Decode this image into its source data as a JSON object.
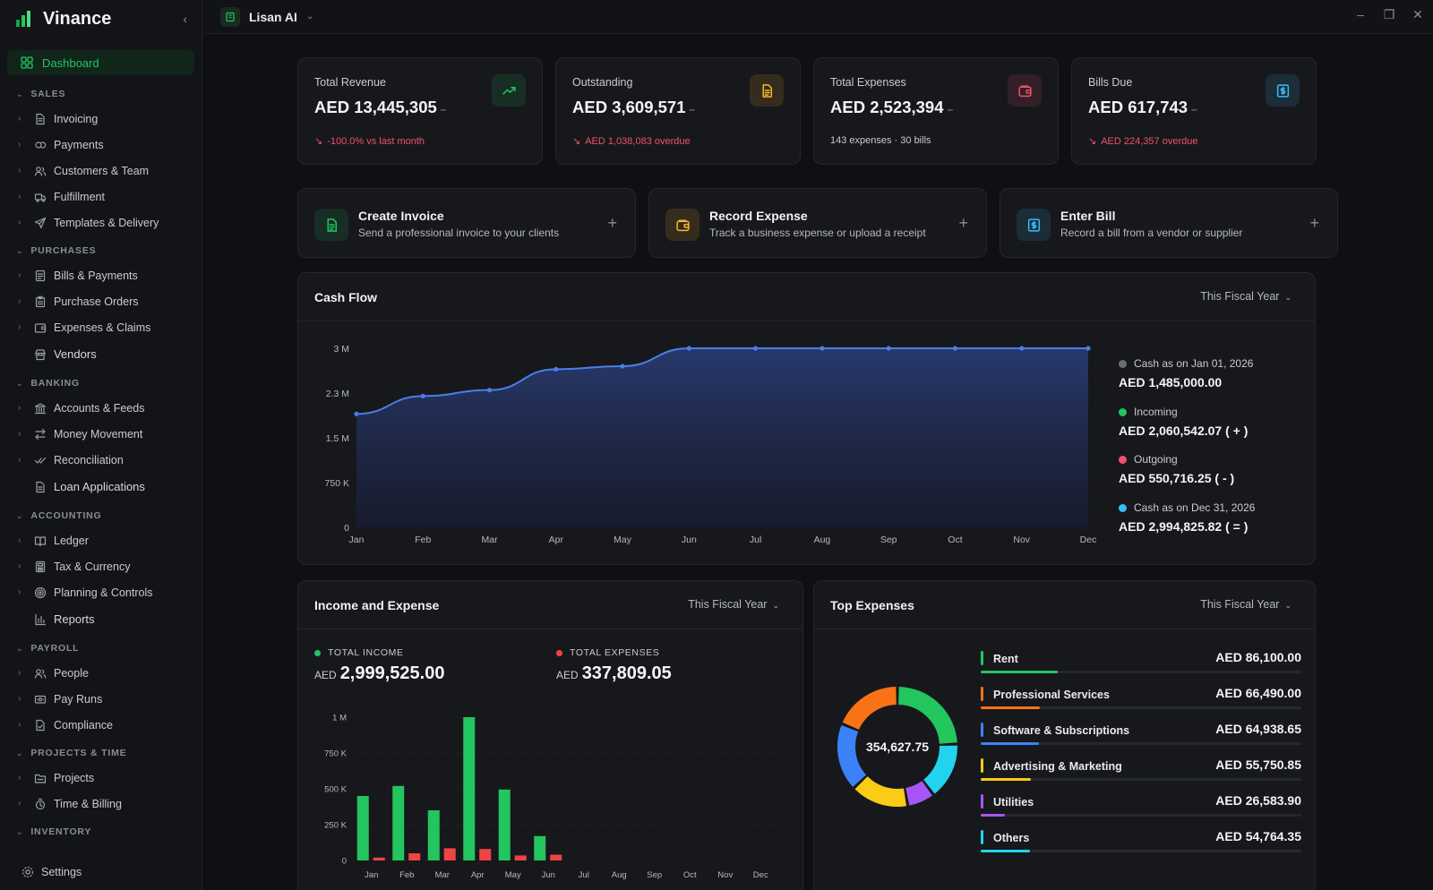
{
  "app": {
    "name": "Vinance",
    "org": "Lisan AI"
  },
  "sidebar": {
    "dashboard": "Dashboard",
    "sections": [
      {
        "title": "SALES",
        "items": [
          "Invoicing",
          "Payments",
          "Customers & Team",
          "Fulfillment",
          "Templates & Delivery"
        ]
      },
      {
        "title": "PURCHASES",
        "items": [
          "Bills & Payments",
          "Purchase Orders",
          "Expenses & Claims"
        ],
        "plain": "Vendors"
      },
      {
        "title": "BANKING",
        "items": [
          "Accounts & Feeds",
          "Money Movement",
          "Reconciliation"
        ],
        "plain": "Loan Applications"
      },
      {
        "title": "ACCOUNTING",
        "items": [
          "Ledger",
          "Tax & Currency",
          "Planning & Controls"
        ],
        "plain": "Reports"
      },
      {
        "title": "PAYROLL",
        "items": [
          "People",
          "Pay Runs",
          "Compliance"
        ]
      },
      {
        "title": "PROJECTS & TIME",
        "items": [
          "Projects",
          "Time & Billing"
        ]
      },
      {
        "title": "INVENTORY",
        "items": []
      }
    ],
    "settings": "Settings"
  },
  "stats": [
    {
      "label": "Total Revenue",
      "value": "AED 13,445,305",
      "sub": "-100.0% vs last month",
      "sub_negative": true,
      "icon": "trending-up-icon",
      "color": "#22c55e"
    },
    {
      "label": "Outstanding",
      "value": "AED 3,609,571",
      "sub": "AED 1,038,083 overdue",
      "sub_negative": true,
      "icon": "document-icon",
      "color": "#f5b82e"
    },
    {
      "label": "Total Expenses",
      "value": "AED 2,523,394",
      "sub": "143 expenses · 30 bills",
      "sub_negative": false,
      "icon": "wallet-icon",
      "color": "#f0506e"
    },
    {
      "label": "Bills Due",
      "value": "AED 617,743",
      "sub": "AED 224,357 overdue",
      "sub_negative": true,
      "icon": "bill-icon",
      "color": "#38bdf8"
    }
  ],
  "actions": [
    {
      "title": "Create Invoice",
      "desc": "Send a professional invoice to your clients",
      "icon": "invoice-icon",
      "color": "#22c55e"
    },
    {
      "title": "Record Expense",
      "desc": "Track a business expense or upload a receipt",
      "icon": "wallet-icon",
      "color": "#f5b82e"
    },
    {
      "title": "Enter Bill",
      "desc": "Record a bill from a vendor or supplier",
      "icon": "bill-icon",
      "color": "#38bdf8"
    }
  ],
  "cashflow": {
    "title": "Cash Flow",
    "period": "This Fiscal Year",
    "legend": [
      {
        "label": "Cash as on Jan 01, 2026",
        "value": "AED 1,485,000.00",
        "color": "#6b6e75"
      },
      {
        "label": "Incoming",
        "value": "AED 2,060,542.07 ( + )",
        "color": "#22c55e"
      },
      {
        "label": "Outgoing",
        "value": "AED 550,716.25 ( - )",
        "color": "#f0506e"
      },
      {
        "label": "Cash as on Dec 31, 2026",
        "value": "AED 2,994,825.82 ( = )",
        "color": "#38bdf8"
      }
    ]
  },
  "income_expense": {
    "title": "Income and Expense",
    "period": "This Fiscal Year",
    "income_label": "TOTAL INCOME",
    "income_currency": "AED",
    "income_value": "2,999,525.00",
    "expense_label": "TOTAL EXPENSES",
    "expense_currency": "AED",
    "expense_value": "337,809.05"
  },
  "top_expenses": {
    "title": "Top Expenses",
    "period": "This Fiscal Year",
    "center_total": "354,627.75",
    "items": [
      {
        "name": "Rent",
        "amount": "AED 86,100.00",
        "value": 86100,
        "color": "#22c55e"
      },
      {
        "name": "Professional Services",
        "amount": "AED 66,490.00",
        "value": 66490,
        "color": "#f97316"
      },
      {
        "name": "Software & Subscriptions",
        "amount": "AED 64,938.65",
        "value": 64938.65,
        "color": "#3b82f6"
      },
      {
        "name": "Advertising & Marketing",
        "amount": "AED 55,750.85",
        "value": 55750.85,
        "color": "#facc15"
      },
      {
        "name": "Utilities",
        "amount": "AED 26,583.90",
        "value": 26583.9,
        "color": "#a855f7"
      },
      {
        "name": "Others",
        "amount": "AED 54,764.35",
        "value": 54764.35,
        "color": "#22d3ee"
      }
    ]
  },
  "chart_data": [
    {
      "type": "area",
      "title": "Cash Flow",
      "categories": [
        "Jan",
        "Feb",
        "Mar",
        "Apr",
        "May",
        "Jun",
        "Jul",
        "Aug",
        "Sep",
        "Oct",
        "Nov",
        "Dec"
      ],
      "yticks": [
        "0",
        "750 K",
        "1.5 M",
        "2.3 M",
        "3 M"
      ],
      "ylim": [
        0,
        3000000
      ],
      "series": [
        {
          "values": [
            1900000,
            2200000,
            2300000,
            2650000,
            2700000,
            3000000,
            3000000,
            3000000,
            3000000,
            3000000,
            3000000,
            3000000
          ]
        }
      ],
      "grid": false
    },
    {
      "type": "bar",
      "title": "Income and Expense",
      "categories": [
        "Jan",
        "Feb",
        "Mar",
        "Apr",
        "May",
        "Jun",
        "Jul",
        "Aug",
        "Sep",
        "Oct",
        "Nov",
        "Dec"
      ],
      "yticks": [
        "0",
        "250 K",
        "500 K",
        "750 K",
        "1 M"
      ],
      "ylim": [
        0,
        1000000
      ],
      "series": [
        {
          "values": [
            450000,
            520000,
            350000,
            1000000,
            495000,
            170000,
            0,
            0,
            0,
            0,
            0,
            0
          ],
          "color": "#22c55e"
        },
        {
          "values": [
            20000,
            50000,
            85000,
            80000,
            35000,
            40000,
            0,
            0,
            0,
            0,
            0,
            0
          ],
          "color": "#ef4444"
        }
      ]
    },
    {
      "type": "pie",
      "title": "Top Expenses",
      "categories": [
        "Rent",
        "Professional Services",
        "Software & Subscriptions",
        "Advertising & Marketing",
        "Utilities",
        "Others"
      ],
      "values": [
        86100,
        66490,
        64938.65,
        55750.85,
        26583.9,
        54764.35
      ]
    }
  ]
}
